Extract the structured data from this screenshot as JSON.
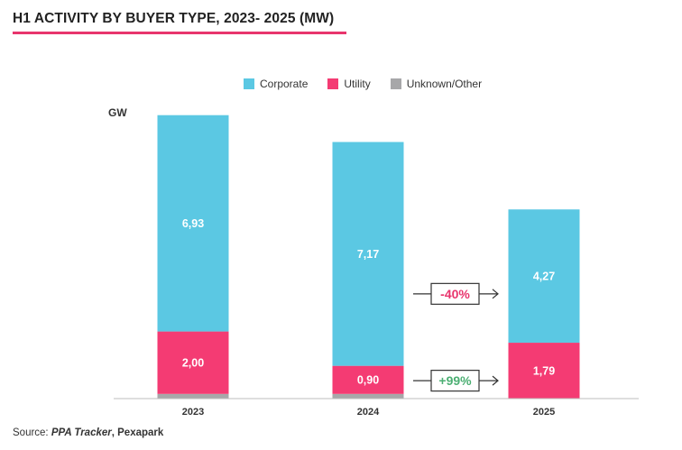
{
  "chart_data": {
    "type": "bar",
    "stacked": true,
    "title": "H1 ACTIVITY BY BUYER TYPE, 2023- 2025 (MW)",
    "ylabel": "GW",
    "categories": [
      "2023",
      "2024",
      "2025"
    ],
    "series": [
      {
        "name": "Unknown/Other",
        "values": [
          0.15,
          0.15,
          0.0
        ],
        "labels": [
          "",
          "",
          ""
        ]
      },
      {
        "name": "Utility",
        "values": [
          2.0,
          0.9,
          1.79
        ],
        "labels": [
          "2,00",
          "0,90",
          "1,79"
        ]
      },
      {
        "name": "Corporate",
        "values": [
          6.93,
          7.17,
          4.27
        ],
        "labels": [
          "6,93",
          "7,17",
          "4,27"
        ]
      }
    ],
    "ylim": [
      0,
      9.1
    ],
    "legend_position": "top",
    "annotations": [
      {
        "text": "-40%",
        "series": "Corporate",
        "between": [
          "2024",
          "2025"
        ],
        "color": "#e8356d"
      },
      {
        "text": "+99%",
        "series": "Utility",
        "between": [
          "2024",
          "2025"
        ],
        "color": "#4caf73"
      }
    ]
  },
  "colors": {
    "Corporate": "#5bc8e3",
    "Utility": "#f43b73",
    "Unknown/Other": "#a7a7a9",
    "accent": "#e8356d",
    "positive": "#4caf73"
  },
  "source": {
    "prefix": "Source: ",
    "name": "PPA Tracker",
    "suffix": ", Pexapark"
  }
}
